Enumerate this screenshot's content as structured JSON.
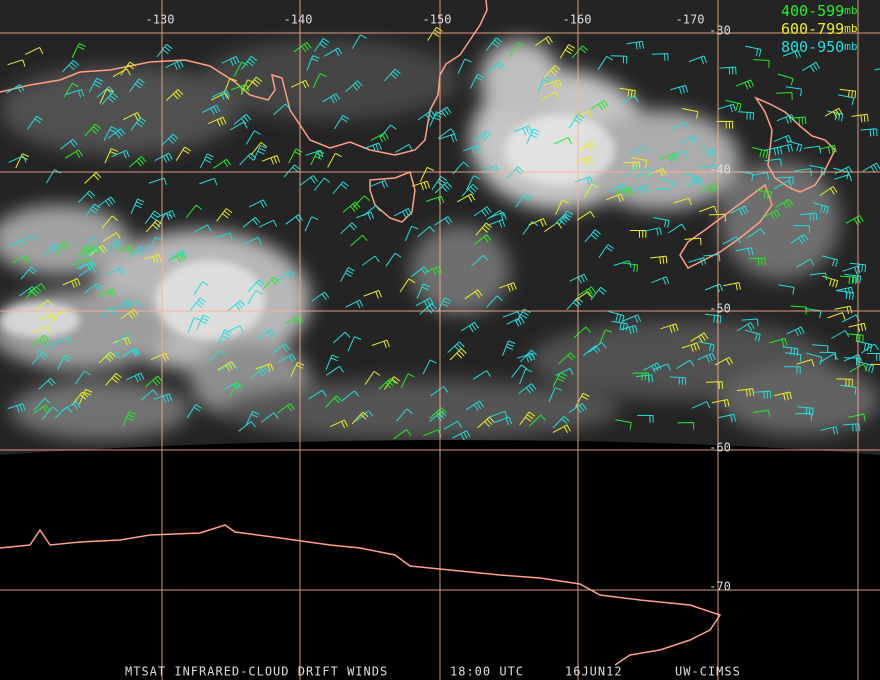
{
  "map": {
    "lon_labels": [
      "-130",
      "-140",
      "-150",
      "-160",
      "-170"
    ],
    "lat_labels": [
      "-30",
      "-40",
      "-50",
      "-60",
      "-70"
    ],
    "legend": [
      {
        "label": "400-599",
        "unit": "mb",
        "color": "#22ee22"
      },
      {
        "label": "600-799",
        "unit": "mb",
        "color": "#eeee22"
      },
      {
        "label": "800-950",
        "unit": "mb",
        "color": "#22dddd"
      }
    ],
    "footer": [
      "MTSAT INFRARED-CLOUD DRIFT WINDS",
      "18:00 UTC",
      "16JUN12",
      "UW-CIMSS"
    ]
  }
}
